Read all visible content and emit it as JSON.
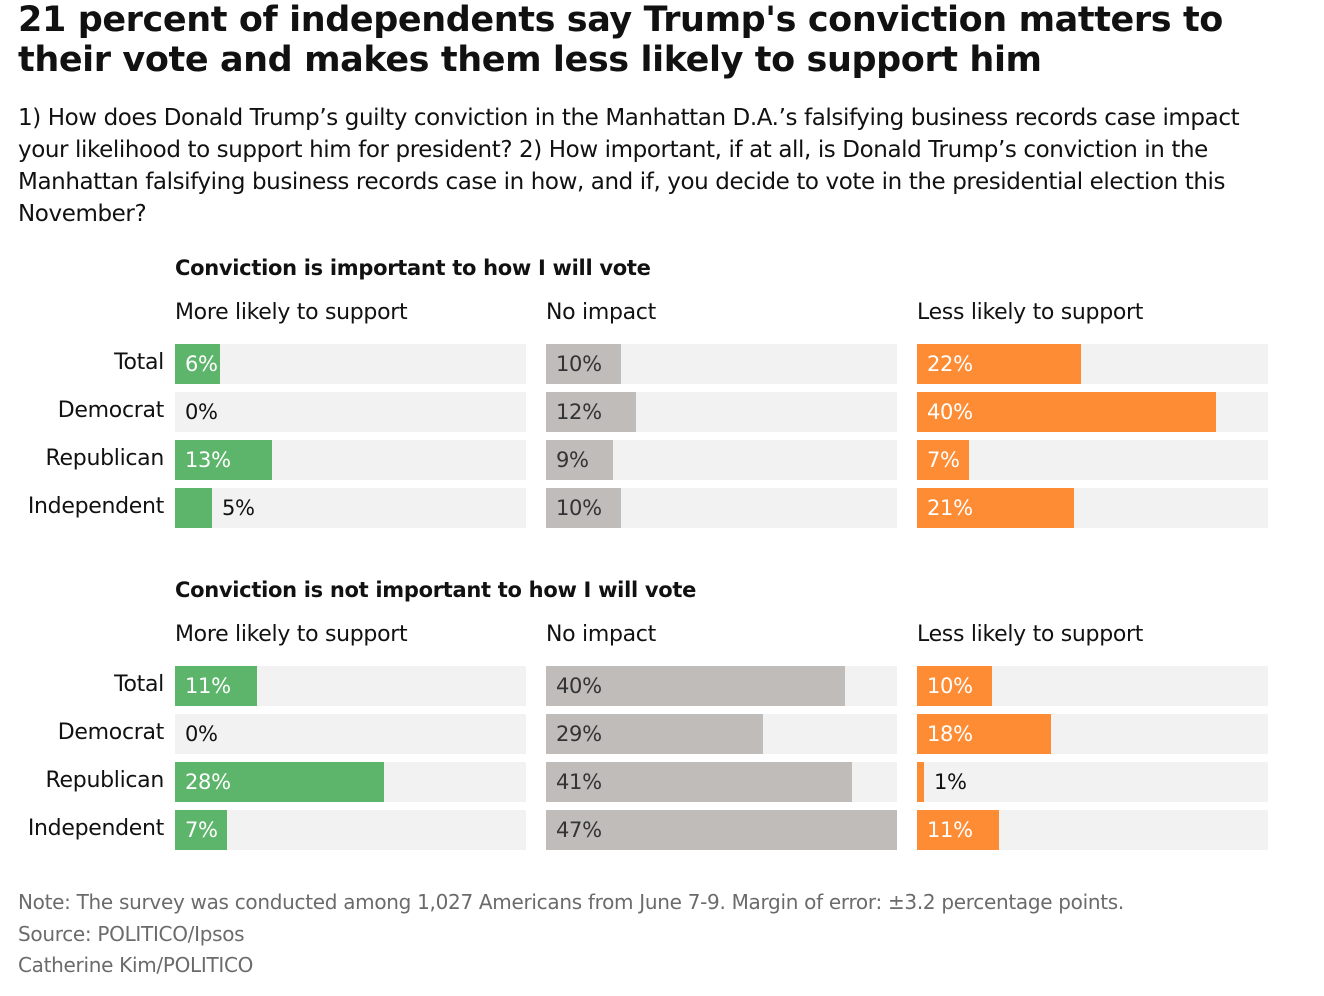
{
  "header": {
    "title": "21 percent of independents say Trump's conviction matters to their vote and makes them less likely to support him",
    "subtitle": "1) How does Donald Trump’s guilty conviction in the Manhattan D.A.’s falsifying business records case impact your likelihood to support him for president? 2) How important, if at all, is Donald Trump’s conviction in the Manhattan falsifying business records case in how, and if, you decide to vote in the presidential election this November?"
  },
  "colors": {
    "more_likely": "#5db56b",
    "no_impact": "#bfbcba",
    "less_likely": "#fd8c35",
    "track": "#f2f2f2"
  },
  "chart_data": [
    {
      "type": "bar",
      "title": "Conviction is important to how I will vote",
      "categories": [
        "Total",
        "Democrat",
        "Republican",
        "Independent"
      ],
      "series": [
        {
          "name": "More likely to support",
          "values": [
            6,
            0,
            13,
            5
          ],
          "labels": [
            "6%",
            "0%",
            "13%",
            "5%"
          ]
        },
        {
          "name": "No impact",
          "values": [
            10,
            12,
            9,
            10
          ],
          "labels": [
            "10%",
            "12%",
            "9%",
            "10%"
          ]
        },
        {
          "name": "Less likely to support",
          "values": [
            22,
            40,
            7,
            21
          ],
          "labels": [
            "22%",
            "40%",
            "7%",
            "21%"
          ]
        }
      ],
      "xlim": [
        0,
        47
      ]
    },
    {
      "type": "bar",
      "title": "Conviction is not important to how I will vote",
      "categories": [
        "Total",
        "Democrat",
        "Republican",
        "Independent"
      ],
      "series": [
        {
          "name": "More likely to support",
          "values": [
            11,
            0,
            28,
            7
          ],
          "labels": [
            "11%",
            "0%",
            "28%",
            "7%"
          ]
        },
        {
          "name": "No impact",
          "values": [
            40,
            29,
            41,
            47
          ],
          "labels": [
            "40%",
            "29%",
            "41%",
            "47%"
          ]
        },
        {
          "name": "Less likely to support",
          "values": [
            10,
            18,
            1,
            11
          ],
          "labels": [
            "10%",
            "18%",
            "1%",
            "11%"
          ]
        }
      ],
      "xlim": [
        0,
        47
      ]
    }
  ],
  "footer": {
    "note": "Note: The survey was conducted among 1,027 Americans from June 7-9. Margin of error: ±3.2 percentage points.",
    "source": "Source: POLITICO/Ipsos",
    "credit": "Catherine Kim/POLITICO"
  }
}
